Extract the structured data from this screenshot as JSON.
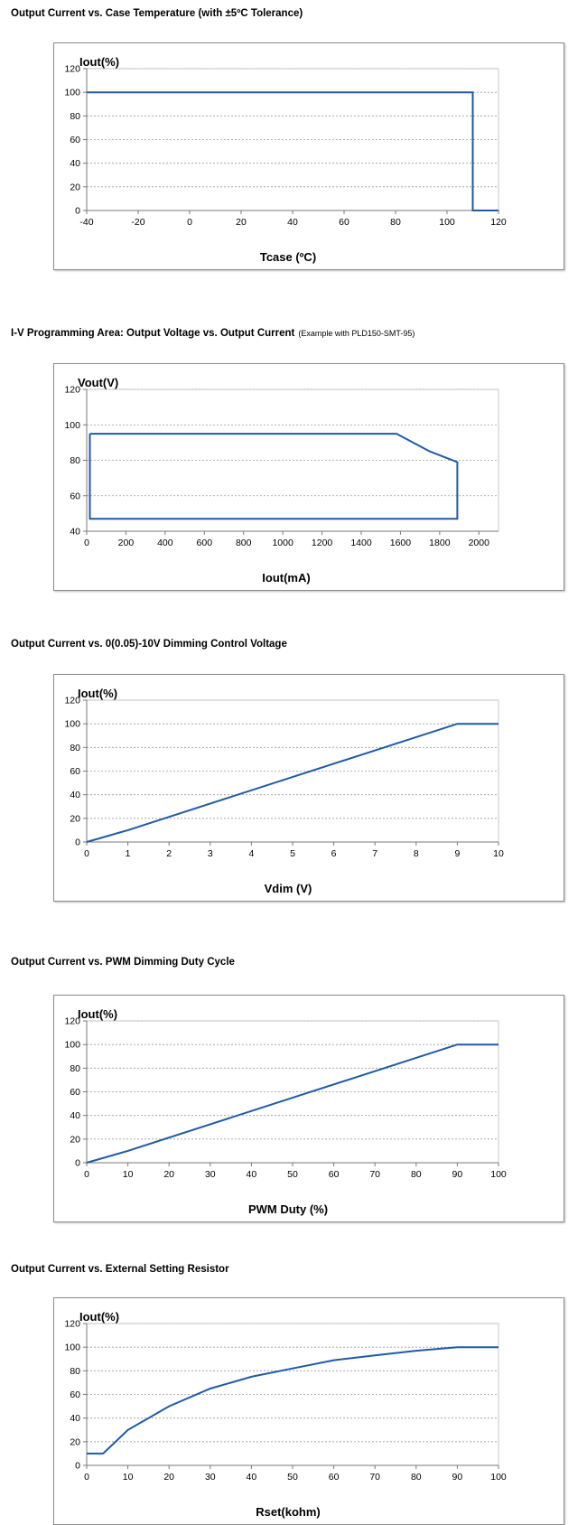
{
  "chart_data": [
    {
      "type": "line",
      "title": "Output Current vs. Case Temperature (with ±5ºC Tolerance)",
      "subtitle": "",
      "xlabel": "Tcase (ºC)",
      "ylabel": "Iout(%)",
      "xlim": [
        -40,
        120
      ],
      "ylim": [
        0,
        120
      ],
      "xticks": [
        -40,
        -20,
        0,
        20,
        40,
        60,
        80,
        100,
        120
      ],
      "yticks": [
        0,
        20,
        40,
        60,
        80,
        100,
        120
      ],
      "grid": "horizontal-dashed",
      "color": "#1f5aa6",
      "series": [
        {
          "x": [
            -40,
            110,
            110,
            120
          ],
          "y": [
            100,
            100,
            0,
            0
          ]
        }
      ]
    },
    {
      "type": "line",
      "title": "I-V Programming Area: Output Voltage vs. Output Current",
      "subtitle": "(Example with PLD150-SMT-95)",
      "xlabel": "Iout(mA)",
      "ylabel": "Vout(V)",
      "xlim": [
        0,
        2100
      ],
      "ylim": [
        40,
        120
      ],
      "xticks": [
        0,
        200,
        400,
        600,
        800,
        1000,
        1200,
        1400,
        1600,
        1800,
        2000
      ],
      "yticks": [
        40,
        60,
        80,
        100,
        120
      ],
      "grid": "horizontal-dashed",
      "color": "#1f5aa6",
      "series": [
        {
          "x": [
            16,
            1580,
            1750,
            1890,
            1890,
            16,
            16
          ],
          "y": [
            95,
            95,
            85,
            79,
            47,
            47,
            95
          ]
        }
      ]
    },
    {
      "type": "line",
      "title": "Output Current vs. 0(0.05)-10V Dimming Control Voltage",
      "subtitle": "",
      "xlabel": "Vdim (V)",
      "ylabel": "Iout(%)",
      "xlim": [
        0,
        10
      ],
      "ylim": [
        0,
        120
      ],
      "xticks": [
        0,
        1,
        2,
        3,
        4,
        5,
        6,
        7,
        8,
        9,
        10
      ],
      "yticks": [
        0,
        20,
        40,
        60,
        80,
        100,
        120
      ],
      "grid": "horizontal-dashed",
      "color": "#1f5aa6",
      "series": [
        {
          "x": [
            0,
            1,
            9,
            10
          ],
          "y": [
            0,
            10,
            100,
            100
          ]
        }
      ]
    },
    {
      "type": "line",
      "title": "Output Current vs. PWM Dimming Duty Cycle",
      "subtitle": "",
      "xlabel": "PWM Duty (%)",
      "ylabel": "Iout(%)",
      "xlim": [
        0,
        100
      ],
      "ylim": [
        0,
        120
      ],
      "xticks": [
        0,
        10,
        20,
        30,
        40,
        50,
        60,
        70,
        80,
        90,
        100
      ],
      "yticks": [
        0,
        20,
        40,
        60,
        80,
        100,
        120
      ],
      "grid": "horizontal-dashed",
      "color": "#1f5aa6",
      "series": [
        {
          "x": [
            0,
            10,
            90,
            100
          ],
          "y": [
            0,
            10,
            100,
            100
          ]
        }
      ]
    },
    {
      "type": "line",
      "title": "Output Current vs. External Setting Resistor",
      "subtitle": "",
      "xlabel": "Rset(kohm)",
      "ylabel": "Iout(%)",
      "xlim": [
        0,
        100
      ],
      "ylim": [
        0,
        120
      ],
      "xticks": [
        0,
        10,
        20,
        30,
        40,
        50,
        60,
        70,
        80,
        90,
        100
      ],
      "yticks": [
        0,
        20,
        40,
        60,
        80,
        100,
        120
      ],
      "grid": "horizontal-dashed",
      "color": "#1f5aa6",
      "series": [
        {
          "x": [
            0,
            4,
            10,
            20,
            30,
            40,
            50,
            60,
            70,
            80,
            90,
            100
          ],
          "y": [
            10,
            10,
            30,
            50,
            65,
            75,
            82,
            89,
            93,
            97,
            100,
            100
          ]
        }
      ]
    }
  ]
}
